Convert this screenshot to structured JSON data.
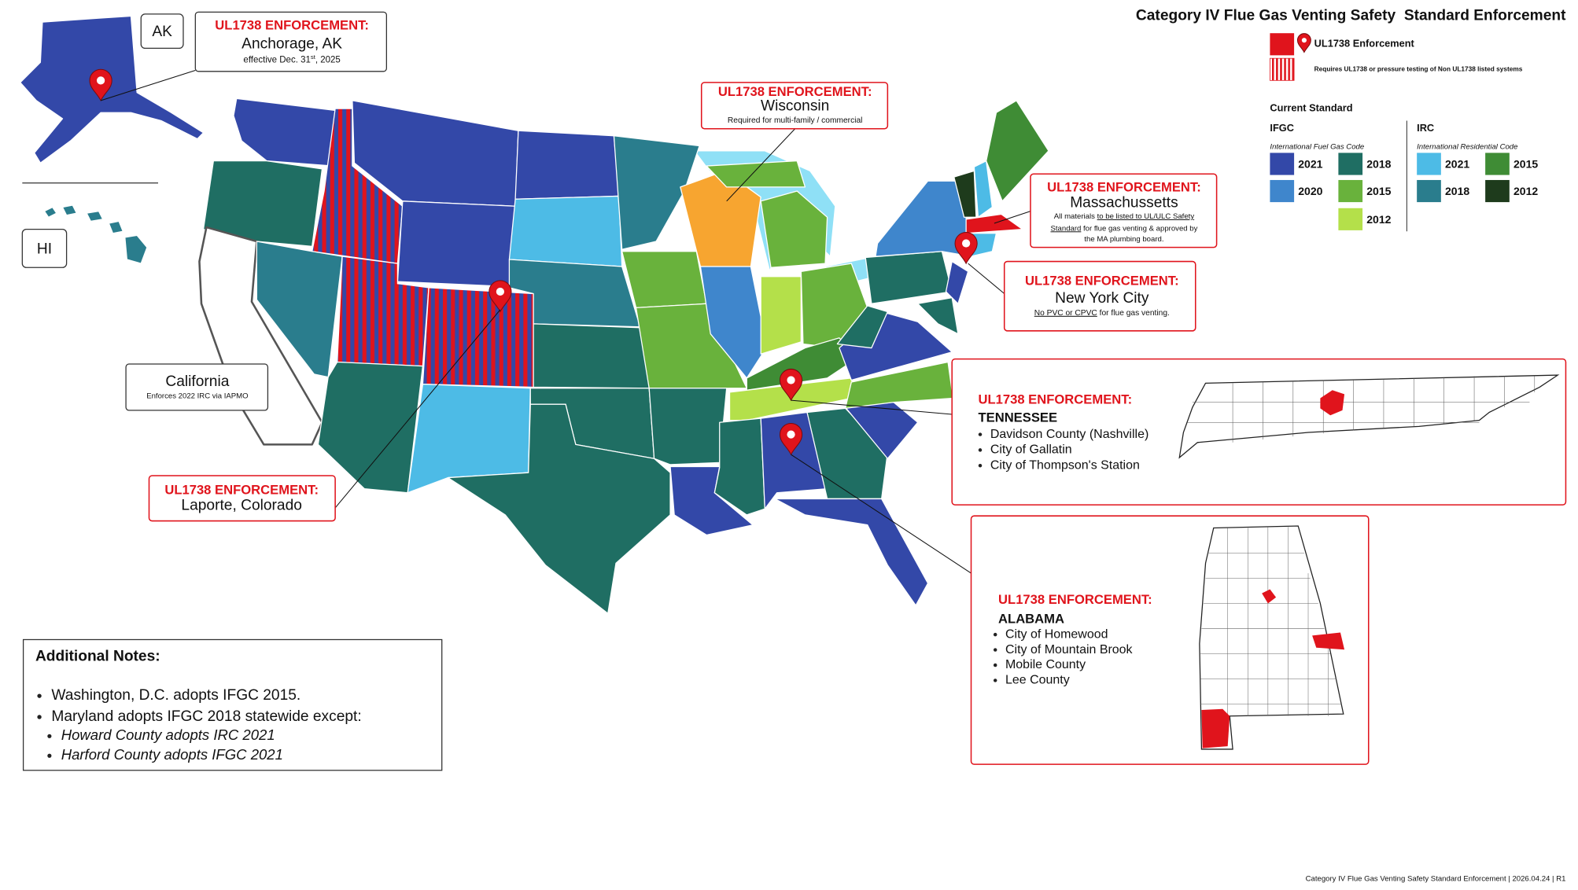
{
  "title": "Category IV Flue Gas Venting Safety  Standard Enforcement",
  "legend": {
    "enforcement": "UL1738 Enforcement",
    "striped": "Requires UL1738 or pressure testing of Non UL1738 listed systems",
    "current_standard": "Current Standard",
    "ifgc": {
      "name": "IFGC",
      "desc": "International Fuel Gas Code",
      "items": [
        {
          "label": "2021",
          "color": "#3348a8"
        },
        {
          "label": "2018",
          "color": "#1f6e63"
        },
        {
          "label": "2020",
          "color": "#3f86cc"
        },
        {
          "label": "2015",
          "color": "#69b23c"
        },
        {
          "label": "2012",
          "color": "#b4e04a"
        }
      ]
    },
    "irc": {
      "name": "IRC",
      "desc": "International Residential Code",
      "items": [
        {
          "label": "2021",
          "color": "#4dbbe6"
        },
        {
          "label": "2015",
          "color": "#3f8c35"
        },
        {
          "label": "2018",
          "color": "#2a7d8d"
        },
        {
          "label": "2012",
          "color": "#1e3b1c"
        }
      ]
    }
  },
  "insets": {
    "ak": "AK",
    "hi": "HI"
  },
  "callouts": {
    "anchorage": {
      "heading": "UL1738 ENFORCEMENT:",
      "place": "Anchorage, AK",
      "note": [
        "effective Dec. 31",
        "st",
        ", 2025"
      ]
    },
    "wisconsin": {
      "heading": "UL1738 ENFORCEMENT:",
      "place": "Wisconsin",
      "note": "Required for multi-family / commercial"
    },
    "massachusetts": {
      "heading": "UL1738 ENFORCEMENT:",
      "place": "Massachussetts",
      "note": [
        [
          "All materials ",
          "to be listed to UL/ULC Safety"
        ],
        [
          "Standard",
          " for flue gas venting & approved by"
        ],
        [
          "the MA plumbing board."
        ]
      ]
    },
    "nyc": {
      "heading": "UL1738 ENFORCEMENT:",
      "place": "New York City",
      "note": [
        "No PVC or CPVC",
        " for flue gas venting."
      ]
    },
    "tennessee": {
      "heading": "UL1738 ENFORCEMENT:",
      "state": "TENNESSEE",
      "items": [
        "Davidson County (Nashville)",
        "City of Gallatin",
        "City of Thompson's Station"
      ]
    },
    "alabama": {
      "heading": "UL1738 ENFORCEMENT:",
      "state": "ALABAMA",
      "items": [
        "City of Homewood",
        "City of Mountain Brook",
        "Mobile County",
        "Lee County"
      ]
    },
    "california": {
      "place": "California",
      "note": "Enforces 2022 IRC via IAPMO"
    },
    "colorado": {
      "heading": "UL1738 ENFORCEMENT:",
      "place": "Laporte, Colorado"
    }
  },
  "notes": {
    "heading": "Additional Notes:",
    "items": [
      "Washington, D.C. adopts IFGC 2015.",
      "Maryland adopts IFGC 2018 statewide except:"
    ],
    "subitems": [
      "Howard County adopts IRC 2021",
      "Harford County adopts IFGC 2021"
    ]
  },
  "footer": "Category IV Flue Gas Venting Safety Standard Enforcement | 2026.04.24 | R1"
}
